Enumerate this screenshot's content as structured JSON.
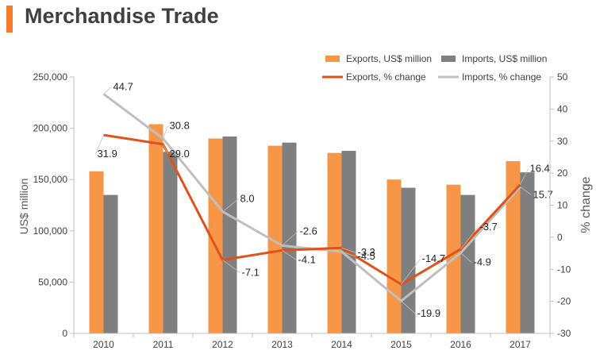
{
  "header": {
    "title": "Merchandise Trade"
  },
  "colors": {
    "accent": "#f47c2a",
    "exports_bar": "#f79646",
    "imports_bar": "#7f7f7f",
    "exports_line": "#e0521b",
    "imports_line": "#bfbfbf"
  },
  "chart_data": {
    "type": "bar",
    "categories": [
      "2010",
      "2011",
      "2012",
      "2013",
      "2014",
      "2015",
      "2016",
      "2017"
    ],
    "ylabel": "US$ million",
    "y2label": "% change",
    "ylim": [
      0,
      250000
    ],
    "y2lim": [
      -30,
      50
    ],
    "yticks": [
      "0",
      "50,000",
      "100,000",
      "150,000",
      "200,000",
      "250,000"
    ],
    "y2ticks": [
      "-30",
      "-20",
      "-10",
      "0",
      "10",
      "20",
      "30",
      "40",
      "50"
    ],
    "legend_position": "top-right",
    "series": [
      {
        "name": "Exports, US$ million",
        "kind": "bar",
        "axis": "left",
        "color": "#f79646",
        "values": [
          158000,
          204000,
          190000,
          183000,
          176000,
          150000,
          145000,
          168000
        ]
      },
      {
        "name": "Imports, US$ million",
        "kind": "bar",
        "axis": "left",
        "color": "#7f7f7f",
        "values": [
          135000,
          177000,
          192000,
          186000,
          178000,
          142000,
          135000,
          157000
        ]
      },
      {
        "name": "Exports, % change",
        "kind": "line",
        "axis": "right",
        "color": "#e0521b",
        "values": [
          31.9,
          29.0,
          -7.1,
          -4.1,
          -3.3,
          -14.7,
          -3.7,
          16.4
        ],
        "labels": [
          "31.9",
          "29.0",
          "-7.1",
          "-4.1",
          "-3.3",
          "-14.7",
          "-3.7",
          "16.4"
        ]
      },
      {
        "name": "Imports, % change",
        "kind": "line",
        "axis": "right",
        "color": "#bfbfbf",
        "values": [
          44.7,
          30.8,
          8.0,
          -2.6,
          -4.5,
          -19.9,
          -4.9,
          15.7
        ],
        "labels": [
          "44.7",
          "30.8",
          "8.0",
          "-2.6",
          "-4.5",
          "-19.9",
          "-4.9",
          "15.7"
        ]
      }
    ]
  }
}
